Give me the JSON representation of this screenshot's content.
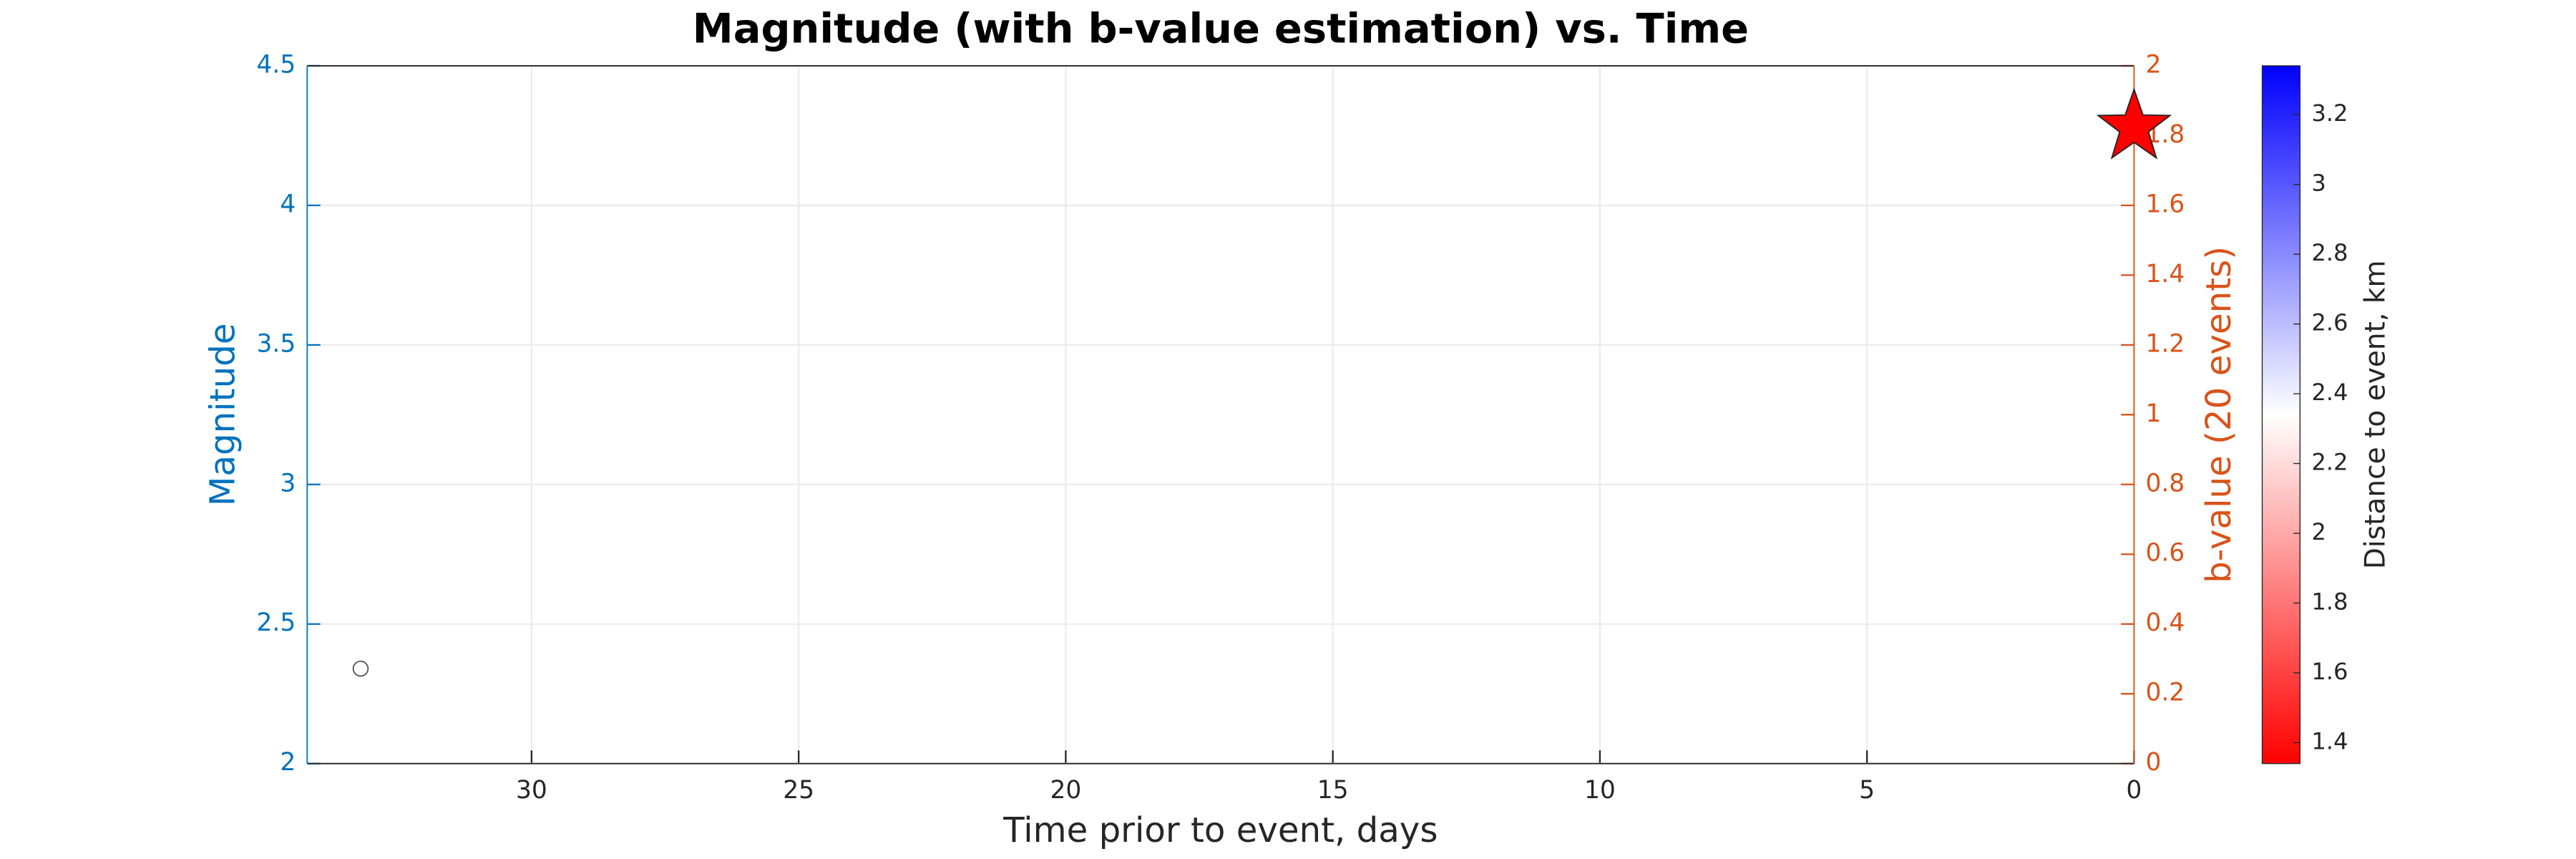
{
  "chart_data": {
    "type": "scatter",
    "title": "Magnitude (with b-value estimation) vs. Time",
    "xlabel": "Time prior to event, days",
    "ylabel": "Magnitude",
    "y2label": "b-value (20 events)",
    "colorbar_label": "Distance to event, km",
    "xlim": [
      34.2,
      0
    ],
    "xticks": [
      30,
      25,
      20,
      15,
      10,
      5,
      0
    ],
    "ylim": [
      2,
      4.5
    ],
    "yticks": [
      2,
      2.5,
      3,
      3.5,
      4,
      4.5
    ],
    "y2lim": [
      0,
      2
    ],
    "y2ticks": [
      0,
      0.2,
      0.4,
      0.6,
      0.8,
      1,
      1.2,
      1.4,
      1.6,
      1.8,
      2
    ],
    "clim": [
      1.34,
      3.34
    ],
    "cticks": [
      1.4,
      1.6,
      1.8,
      2,
      2.2,
      2.4,
      2.6,
      2.8,
      3,
      3.2
    ],
    "colormap": [
      "#ff0000",
      "#ffffff",
      "#0000ff"
    ],
    "grid": true,
    "y_color": "#0072bd",
    "y2_color": "#d95319",
    "series": [
      {
        "marker": "circle",
        "color": "#555555",
        "x": [
          33.2
        ],
        "values": [
          2.34
        ]
      },
      {
        "marker": "star",
        "color": "#ff0000",
        "x": [
          0
        ],
        "values": [
          4.28
        ]
      }
    ]
  }
}
